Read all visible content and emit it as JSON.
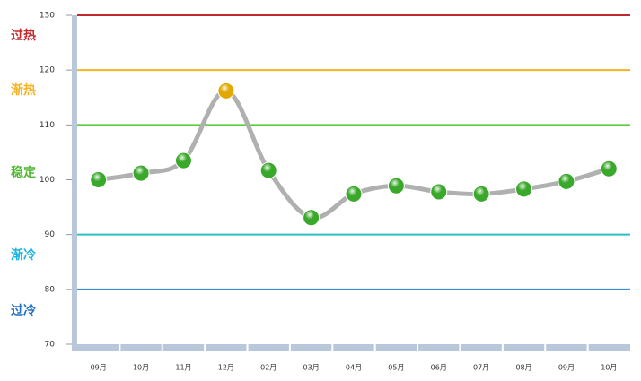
{
  "chart_data": {
    "type": "line",
    "categories": [
      "09月",
      "10月",
      "11月",
      "12月",
      "02月",
      "03月",
      "04月",
      "05月",
      "06月",
      "07月",
      "08月",
      "09月",
      "10月"
    ],
    "values": [
      100,
      101.2,
      103.5,
      116.2,
      101.7,
      93.1,
      97.4,
      98.9,
      97.8,
      97.4,
      98.3,
      99.7,
      102
    ],
    "point_colors": [
      "#3aa82a",
      "#3aa82a",
      "#3aa82a",
      "#e0a800",
      "#3aa82a",
      "#3aa82a",
      "#3aa82a",
      "#3aa82a",
      "#3aa82a",
      "#3aa82a",
      "#3aa82a",
      "#3aa82a",
      "#3aa82a"
    ],
    "line_color": "#b0b0b0",
    "ylim": [
      70,
      130
    ],
    "yticks": [
      70,
      80,
      90,
      100,
      110,
      120,
      130
    ],
    "reference_lines": [
      {
        "value": 130,
        "color": "#c0282d"
      },
      {
        "value": 120,
        "color": "#f5b324"
      },
      {
        "value": 110,
        "color": "#5fcc3a"
      },
      {
        "value": 90,
        "color": "#2bc0c8"
      },
      {
        "value": 80,
        "color": "#3a8fd6"
      }
    ],
    "zones": [
      {
        "label": "过热",
        "color": "#c0282d"
      },
      {
        "label": "渐热",
        "color": "#f5b324"
      },
      {
        "label": "稳定",
        "color": "#4fb830"
      },
      {
        "label": "渐冷",
        "color": "#1ab3e0"
      },
      {
        "label": "过冷",
        "color": "#1f6fbf"
      }
    ]
  }
}
